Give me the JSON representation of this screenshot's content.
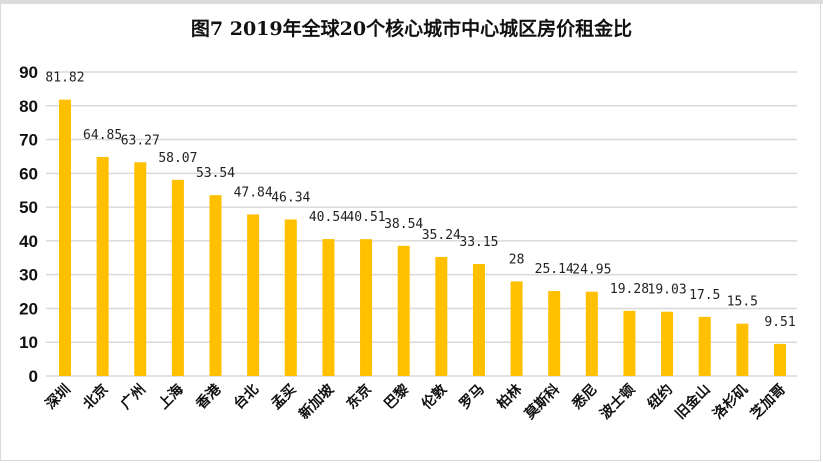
{
  "chart_data": {
    "type": "bar",
    "title": "图7      2019年全球20个核心城市中心城区房价租金比",
    "xlabel": "",
    "ylabel": "",
    "ylim": [
      0,
      90
    ],
    "yticks": [
      0,
      10,
      20,
      30,
      40,
      50,
      60,
      70,
      80,
      90
    ],
    "grid": true,
    "legend": "none",
    "bar_color": "#FFC000",
    "categories": [
      "深圳",
      "北京",
      "广州",
      "上海",
      "香港",
      "台北",
      "孟买",
      "新加坡",
      "东京",
      "巴黎",
      "伦敦",
      "罗马",
      "柏林",
      "莫斯科",
      "悉尼",
      "波士顿",
      "纽约",
      "旧金山",
      "洛杉矶",
      "芝加哥"
    ],
    "values": [
      81.82,
      64.85,
      63.27,
      58.07,
      53.54,
      47.84,
      46.34,
      40.54,
      40.51,
      38.54,
      35.24,
      33.15,
      28,
      25.14,
      24.95,
      19.28,
      19.03,
      17.5,
      15.5,
      9.51
    ],
    "data_labels": [
      "81.82",
      "64.85",
      "63.27",
      "58.07",
      "53.54",
      "47.84",
      "46.34",
      "40.54",
      "40.51",
      "38.54",
      "35.24",
      "33.15",
      "28",
      "25.14",
      "24.95",
      "19.28",
      "19.03",
      "17.5",
      "15.5",
      "9.51"
    ]
  }
}
